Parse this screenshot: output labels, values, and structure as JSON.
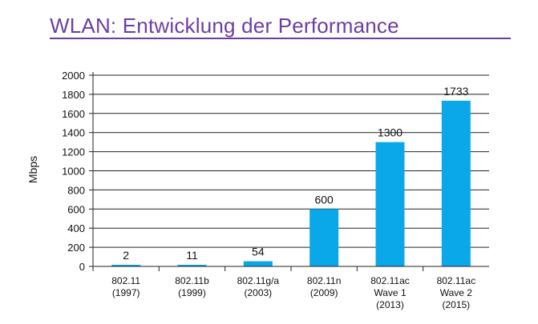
{
  "slide": {
    "title": "WLAN: Entwicklung der Performance"
  },
  "chart_data": {
    "type": "bar",
    "title": "",
    "xlabel": "",
    "ylabel": "Mbps",
    "ylim": [
      0,
      2000
    ],
    "yticks": [
      0,
      200,
      400,
      600,
      800,
      1000,
      1200,
      1400,
      1600,
      1800,
      2000
    ],
    "grid": true,
    "categories": [
      [
        "802.11",
        "(1997)"
      ],
      [
        "802.11b",
        "(1999)"
      ],
      [
        "802.11g/a",
        "(2003)"
      ],
      [
        "802.11n",
        "(2009)"
      ],
      [
        "802.11ac",
        "Wave 1",
        "(2013)"
      ],
      [
        "802.11ac",
        "Wave 2",
        "(2015)"
      ]
    ],
    "values": [
      2,
      11,
      54,
      600,
      1300,
      1733
    ],
    "data_labels": [
      "2",
      "11",
      "54",
      "600",
      "1300",
      "1733"
    ],
    "bar_color": "#0aa8e8"
  }
}
